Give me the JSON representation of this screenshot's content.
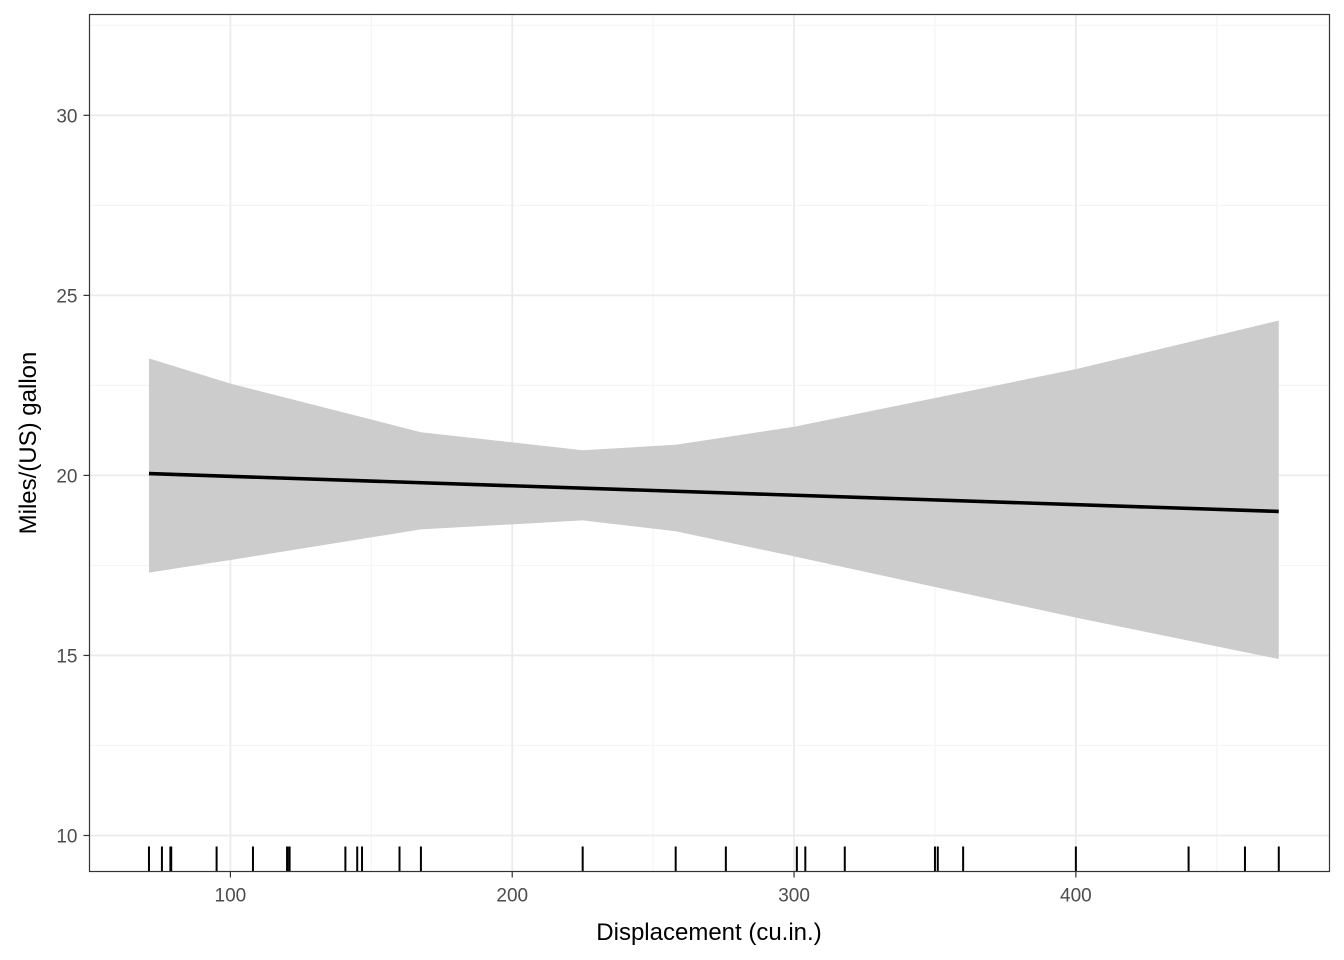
{
  "chart_data": {
    "type": "line",
    "title": "",
    "xlabel": "Displacement (cu.in.)",
    "ylabel": "Miles/(US) gallon",
    "xlim": [
      50,
      490
    ],
    "ylim": [
      9.0,
      32.8
    ],
    "x_ticks": [
      100,
      200,
      300,
      400
    ],
    "y_ticks": [
      10,
      15,
      20,
      25,
      30
    ],
    "x_tick_labels": [
      "100",
      "200",
      "300",
      "400"
    ],
    "y_tick_labels": [
      "10",
      "15",
      "20",
      "25",
      "30"
    ],
    "grid": true,
    "legend": "none",
    "series": [
      {
        "type": "line",
        "color": "#000000",
        "x": [
          71.1,
          472.0
        ],
        "y": [
          20.05,
          19.0
        ]
      }
    ],
    "confidence_band": {
      "color": "#cccccc",
      "x": [
        71.1,
        100,
        167.6,
        225,
        258,
        300,
        400,
        472.0
      ],
      "upper": [
        23.25,
        22.55,
        21.2,
        20.7,
        20.85,
        21.35,
        22.95,
        24.3
      ],
      "lower": [
        17.3,
        17.65,
        18.5,
        18.75,
        18.45,
        17.75,
        16.05,
        14.9
      ]
    },
    "rug_x": [
      71.1,
      75.7,
      78.7,
      79.0,
      95.1,
      108.0,
      120.1,
      120.3,
      121.0,
      140.8,
      145.0,
      146.7,
      160.0,
      167.6,
      225.0,
      258.0,
      275.8,
      301.0,
      304.0,
      318.0,
      350.0,
      351.0,
      360.0,
      400.0,
      440.0,
      460.0,
      472.0
    ]
  },
  "colors": {
    "panel_border": "#333333",
    "grid_major": "#ebebeb",
    "grid_minor": "#f5f5f5",
    "ribbon": "#cccccc",
    "line": "#000000"
  }
}
